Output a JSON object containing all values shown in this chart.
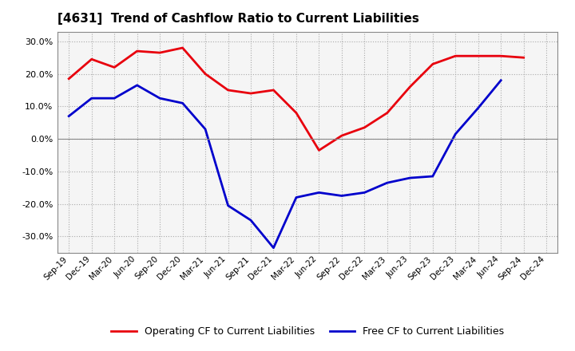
{
  "title": "[4631]  Trend of Cashflow Ratio to Current Liabilities",
  "x_labels": [
    "Sep-19",
    "Dec-19",
    "Mar-20",
    "Jun-20",
    "Sep-20",
    "Dec-20",
    "Mar-21",
    "Jun-21",
    "Sep-21",
    "Dec-21",
    "Mar-22",
    "Jun-22",
    "Sep-22",
    "Dec-22",
    "Mar-23",
    "Jun-23",
    "Sep-23",
    "Dec-23",
    "Mar-24",
    "Jun-24",
    "Sep-24",
    "Dec-24"
  ],
  "operating_cf": [
    18.5,
    24.5,
    22.0,
    27.0,
    26.5,
    28.0,
    20.0,
    15.0,
    14.0,
    15.0,
    8.0,
    -3.5,
    1.0,
    3.5,
    8.0,
    16.0,
    23.0,
    25.5,
    25.5,
    25.5,
    25.0,
    null
  ],
  "free_cf": [
    7.0,
    12.5,
    12.5,
    16.5,
    12.5,
    11.0,
    3.0,
    -20.5,
    -25.0,
    -33.5,
    -18.0,
    -16.5,
    -17.5,
    -16.5,
    -13.5,
    -12.0,
    -11.5,
    1.5,
    9.5,
    18.0,
    null,
    null
  ],
  "ylim": [
    -35,
    33
  ],
  "yticks": [
    -30.0,
    -20.0,
    -10.0,
    0.0,
    10.0,
    20.0,
    30.0
  ],
  "operating_color": "#e8000d",
  "free_color": "#0000cc",
  "background_color": "#ffffff",
  "plot_bg_color": "#f5f5f5",
  "grid_color": "#aaaaaa",
  "legend_labels": [
    "Operating CF to Current Liabilities",
    "Free CF to Current Liabilities"
  ]
}
